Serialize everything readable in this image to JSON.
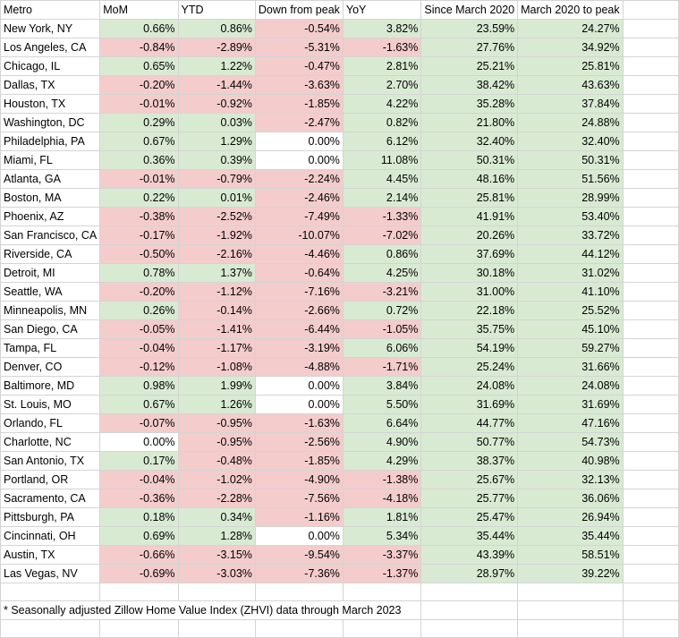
{
  "headers": [
    "Metro",
    "MoM",
    "YTD",
    "Down from peak",
    "YoY",
    "Since March 2020",
    "March 2020 to peak"
  ],
  "rows": [
    {
      "metro": "New York, NY",
      "vals": [
        "0.66%",
        "0.86%",
        "-0.54%",
        "3.82%",
        "23.59%",
        "24.27%"
      ]
    },
    {
      "metro": "Los Angeles, CA",
      "vals": [
        "-0.84%",
        "-2.89%",
        "-5.31%",
        "-1.63%",
        "27.76%",
        "34.92%"
      ]
    },
    {
      "metro": "Chicago, IL",
      "vals": [
        "0.65%",
        "1.22%",
        "-0.47%",
        "2.81%",
        "25.21%",
        "25.81%"
      ]
    },
    {
      "metro": "Dallas, TX",
      "vals": [
        "-0.20%",
        "-1.44%",
        "-3.63%",
        "2.70%",
        "38.42%",
        "43.63%"
      ]
    },
    {
      "metro": "Houston, TX",
      "vals": [
        "-0.01%",
        "-0.92%",
        "-1.85%",
        "4.22%",
        "35.28%",
        "37.84%"
      ]
    },
    {
      "metro": "Washington, DC",
      "vals": [
        "0.29%",
        "0.03%",
        "-2.47%",
        "0.82%",
        "21.80%",
        "24.88%"
      ]
    },
    {
      "metro": "Philadelphia, PA",
      "vals": [
        "0.67%",
        "1.29%",
        "0.00%",
        "6.12%",
        "32.40%",
        "32.40%"
      ]
    },
    {
      "metro": "Miami, FL",
      "vals": [
        "0.36%",
        "0.39%",
        "0.00%",
        "11.08%",
        "50.31%",
        "50.31%"
      ]
    },
    {
      "metro": "Atlanta, GA",
      "vals": [
        "-0.01%",
        "-0.79%",
        "-2.24%",
        "4.45%",
        "48.16%",
        "51.56%"
      ]
    },
    {
      "metro": "Boston, MA",
      "vals": [
        "0.22%",
        "0.01%",
        "-2.46%",
        "2.14%",
        "25.81%",
        "28.99%"
      ]
    },
    {
      "metro": "Phoenix, AZ",
      "vals": [
        "-0.38%",
        "-2.52%",
        "-7.49%",
        "-1.33%",
        "41.91%",
        "53.40%"
      ]
    },
    {
      "metro": "San Francisco, CA",
      "vals": [
        "-0.17%",
        "-1.92%",
        "-10.07%",
        "-7.02%",
        "20.26%",
        "33.72%"
      ]
    },
    {
      "metro": "Riverside, CA",
      "vals": [
        "-0.50%",
        "-2.16%",
        "-4.46%",
        "0.86%",
        "37.69%",
        "44.12%"
      ]
    },
    {
      "metro": "Detroit, MI",
      "vals": [
        "0.78%",
        "1.37%",
        "-0.64%",
        "4.25%",
        "30.18%",
        "31.02%"
      ]
    },
    {
      "metro": "Seattle, WA",
      "vals": [
        "-0.20%",
        "-1.12%",
        "-7.16%",
        "-3.21%",
        "31.00%",
        "41.10%"
      ]
    },
    {
      "metro": "Minneapolis, MN",
      "vals": [
        "0.26%",
        "-0.14%",
        "-2.66%",
        "0.72%",
        "22.18%",
        "25.52%"
      ]
    },
    {
      "metro": "San Diego, CA",
      "vals": [
        "-0.05%",
        "-1.41%",
        "-6.44%",
        "-1.05%",
        "35.75%",
        "45.10%"
      ]
    },
    {
      "metro": "Tampa, FL",
      "vals": [
        "-0.04%",
        "-1.17%",
        "-3.19%",
        "6.06%",
        "54.19%",
        "59.27%"
      ]
    },
    {
      "metro": "Denver, CO",
      "vals": [
        "-0.12%",
        "-1.08%",
        "-4.88%",
        "-1.71%",
        "25.24%",
        "31.66%"
      ]
    },
    {
      "metro": "Baltimore, MD",
      "vals": [
        "0.98%",
        "1.99%",
        "0.00%",
        "3.84%",
        "24.08%",
        "24.08%"
      ]
    },
    {
      "metro": "St. Louis, MO",
      "vals": [
        "0.67%",
        "1.26%",
        "0.00%",
        "5.50%",
        "31.69%",
        "31.69%"
      ]
    },
    {
      "metro": "Orlando, FL",
      "vals": [
        "-0.07%",
        "-0.95%",
        "-1.63%",
        "6.64%",
        "44.77%",
        "47.16%"
      ]
    },
    {
      "metro": "Charlotte, NC",
      "vals": [
        "0.00%",
        "-0.95%",
        "-2.56%",
        "4.90%",
        "50.77%",
        "54.73%"
      ]
    },
    {
      "metro": "San Antonio, TX",
      "vals": [
        "0.17%",
        "-0.48%",
        "-1.85%",
        "4.29%",
        "38.37%",
        "40.98%"
      ]
    },
    {
      "metro": "Portland, OR",
      "vals": [
        "-0.04%",
        "-1.02%",
        "-4.90%",
        "-1.38%",
        "25.67%",
        "32.13%"
      ]
    },
    {
      "metro": "Sacramento, CA",
      "vals": [
        "-0.36%",
        "-2.28%",
        "-7.56%",
        "-4.18%",
        "25.77%",
        "36.06%"
      ]
    },
    {
      "metro": "Pittsburgh, PA",
      "vals": [
        "0.18%",
        "0.34%",
        "-1.16%",
        "1.81%",
        "25.47%",
        "26.94%"
      ]
    },
    {
      "metro": "Cincinnati, OH",
      "vals": [
        "0.69%",
        "1.28%",
        "0.00%",
        "5.34%",
        "35.44%",
        "35.44%"
      ]
    },
    {
      "metro": "Austin, TX",
      "vals": [
        "-0.66%",
        "-3.15%",
        "-9.54%",
        "-3.37%",
        "43.39%",
        "58.51%"
      ]
    },
    {
      "metro": "Las Vegas, NV",
      "vals": [
        "-0.69%",
        "-3.03%",
        "-7.36%",
        "-1.37%",
        "28.97%",
        "39.22%"
      ]
    }
  ],
  "footnote": "* Seasonally adjusted Zillow Home Value Index (ZHVI) data through March 2023",
  "colors": {
    "positive": "#d9ead3",
    "negative": "#f4cccc",
    "zero": "#ffffff"
  }
}
